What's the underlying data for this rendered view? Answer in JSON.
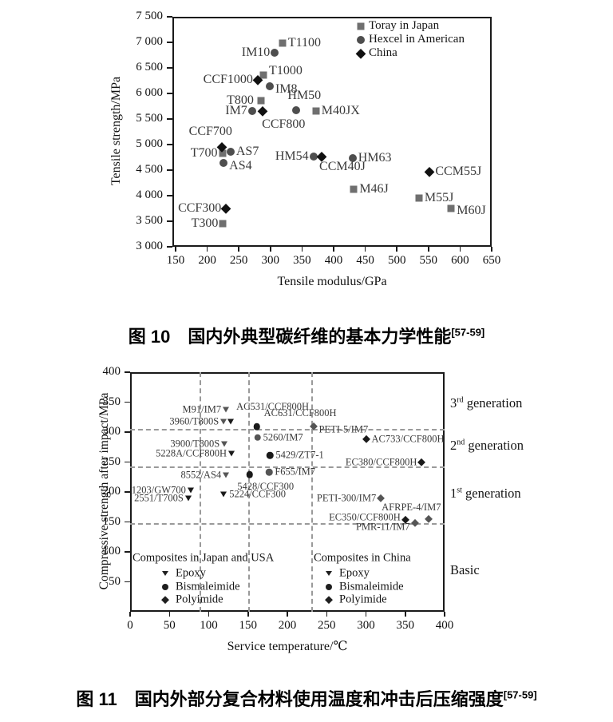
{
  "figure10": {
    "caption": {
      "label": "图 10",
      "text": "国内外典型碳纤维的基本力学性能",
      "ref": "[57-59]"
    }
  },
  "figure11": {
    "caption": {
      "label": "图 11",
      "text": "国内外部分复合材料使用温度和冲击后压缩强度",
      "ref": "[57-59]"
    }
  },
  "chart_data": [
    {
      "id": "fig10",
      "type": "scatter",
      "title": "",
      "xlabel": "Tensile modulus/GPa",
      "ylabel": "Tensile strength/MPa",
      "xlim": [
        145,
        650
      ],
      "ylim": [
        3000,
        7500
      ],
      "xticks": [
        150,
        200,
        250,
        300,
        350,
        400,
        450,
        500,
        550,
        600,
        650
      ],
      "yticks": [
        3000,
        3500,
        4000,
        4500,
        5000,
        5500,
        6000,
        6500,
        7000,
        7500
      ],
      "grid": false,
      "legend_position": "top-right-inside",
      "legend": [
        {
          "marker": "square",
          "label": "Toray in Japan"
        },
        {
          "marker": "circle",
          "label": "Hexcel in American"
        },
        {
          "marker": "diamond",
          "label": "China"
        }
      ],
      "series": [
        {
          "name": "Toray in Japan",
          "marker": "square",
          "color": "#6f6f6f",
          "points": [
            {
              "label": "T300",
              "x": 225,
              "y": 3450,
              "side": "l"
            },
            {
              "label": "T700",
              "x": 224,
              "y": 4830,
              "side": "l"
            },
            {
              "label": "T800",
              "x": 285,
              "y": 5860,
              "side": "l",
              "dx": -3
            },
            {
              "label": "T1000",
              "x": 289,
              "y": 6360,
              "side": "r",
              "dy": -5
            },
            {
              "label": "T1100",
              "x": 319,
              "y": 6980,
              "side": "r"
            },
            {
              "label": "M40JX",
              "x": 372,
              "y": 5660,
              "side": "r"
            },
            {
              "label": "M46J",
              "x": 432,
              "y": 4130,
              "side": "r"
            },
            {
              "label": "M55J",
              "x": 535,
              "y": 3950,
              "side": "r"
            },
            {
              "label": "M60J",
              "x": 586,
              "y": 3750,
              "side": "r",
              "dy": 3
            }
          ]
        },
        {
          "name": "Hexcel in American",
          "marker": "circle",
          "color": "#4e4e4e",
          "points": [
            {
              "label": "AS4",
              "x": 226,
              "y": 4640,
              "side": "r",
              "dy": 4
            },
            {
              "label": "AS7",
              "x": 237,
              "y": 4860,
              "side": "r"
            },
            {
              "label": "IM7",
              "x": 271,
              "y": 5660,
              "side": "l"
            },
            {
              "label": "IM8",
              "x": 299,
              "y": 6140,
              "side": "r",
              "dy": 4
            },
            {
              "label": "IM10",
              "x": 307,
              "y": 6800,
              "side": "l"
            },
            {
              "label": "HM50",
              "x": 341,
              "y": 5670,
              "side": "a",
              "dx": 10,
              "dy": -2
            },
            {
              "label": "HM54",
              "x": 368,
              "y": 4770,
              "side": "l"
            },
            {
              "label": "HM63",
              "x": 430,
              "y": 4740,
              "side": "r"
            }
          ]
        },
        {
          "name": "China",
          "marker": "diamond",
          "color": "#111111",
          "points": [
            {
              "label": "CCF300",
              "x": 230,
              "y": 3750,
              "side": "l"
            },
            {
              "label": "CCF700",
              "x": 223,
              "y": 4950,
              "side": "a",
              "dx": -14,
              "dy": -3
            },
            {
              "label": "CCF800",
              "x": 288,
              "y": 5660,
              "side": "b",
              "dx": 26,
              "dy": 1
            },
            {
              "label": "CCF1000",
              "x": 280,
              "y": 6270,
              "side": "l"
            },
            {
              "label": "CCM40J",
              "x": 381,
              "y": 4760,
              "side": "b",
              "dx": 26,
              "dy": -3
            },
            {
              "label": "CCM55J",
              "x": 552,
              "y": 4470,
              "side": "r"
            }
          ]
        }
      ]
    },
    {
      "id": "fig11",
      "type": "scatter",
      "title": "",
      "xlabel": "Service temperature/℃",
      "ylabel": "Compressive strength after impact/MPa",
      "xlim": [
        0,
        400
      ],
      "ylim": [
        0,
        400
      ],
      "xticks": [
        0,
        50,
        100,
        150,
        200,
        250,
        300,
        350,
        400
      ],
      "yticks": [
        50,
        100,
        150,
        200,
        250,
        300,
        350,
        400
      ],
      "grid": false,
      "dashed_vlines": [
        88,
        150,
        230
      ],
      "dashed_hlines": [
        305,
        243,
        148
      ],
      "right_labels": [
        {
          "pre": "3",
          "sup": "rd",
          "post": " generation",
          "y": 348
        },
        {
          "pre": "2",
          "sup": "nd",
          "post": " generation",
          "y": 277
        },
        {
          "pre": "1",
          "sup": "st",
          "post": " generation",
          "y": 197
        },
        {
          "pre": "Basic",
          "sup": "",
          "post": "",
          "y": 70
        }
      ],
      "inplot_legend": {
        "columns": [
          {
            "header": "Composites in Japan and USA"
          },
          {
            "header": "Composites in China"
          }
        ],
        "rows": [
          {
            "marker": "triangle",
            "label": "Epoxy"
          },
          {
            "marker": "circle",
            "label": "Bismaleimide"
          },
          {
            "marker": "diamond",
            "label": "Polyimide"
          }
        ]
      },
      "series": [
        {
          "name": "Epoxy - Composites in Japan and USA",
          "marker": "triangle",
          "color": "#555555",
          "points": [
            {
              "label": "M91/IM7",
              "x": 122,
              "y": 338,
              "side": "l"
            },
            {
              "label": "3960/T800S",
              "x": 119,
              "y": 318,
              "side": "l"
            },
            {
              "label": "3900/T800S",
              "x": 120,
              "y": 280,
              "side": "l"
            },
            {
              "label": "8552/AS4",
              "x": 122,
              "y": 228,
              "side": "l"
            }
          ]
        },
        {
          "name": "Bismaleimide - Composites in Japan and USA",
          "marker": "circle",
          "color": "#555555",
          "points": [
            {
              "label": "5260/IM7",
              "x": 162,
              "y": 291,
              "side": "r"
            },
            {
              "label": "F655/IM7",
              "x": 177,
              "y": 233,
              "side": "r"
            }
          ]
        },
        {
          "name": "Polyimide - Composites in Japan and USA",
          "marker": "diamond",
          "color": "#555555",
          "points": [
            {
              "label": "PETI-5/IM7",
              "x": 233,
              "y": 309,
              "side": "r",
              "dy": 4
            },
            {
              "label": "PETI-300/IM7",
              "x": 319,
              "y": 190,
              "side": "l"
            },
            {
              "label": "AFRPE-4/IM7",
              "x": 380,
              "y": 155,
              "side": "a",
              "dx": -22
            },
            {
              "label": "PMR-11/IM7",
              "x": 362,
              "y": 148,
              "side": "l",
              "dy": 5
            }
          ]
        },
        {
          "name": "Epoxy - Composites in China",
          "marker": "triangle",
          "color": "#1a1a1a",
          "points": [
            {
              "label": "AC531/CCF800H",
              "x": 128,
              "y": 318,
              "side": "ar",
              "dx": 2,
              "dy": -8
            },
            {
              "label": "5228A/CCF800H",
              "x": 129,
              "y": 264,
              "side": "l"
            },
            {
              "label": "5224/CCF300",
              "x": 119,
              "y": 196,
              "side": "r"
            },
            {
              "label": "2551/T700S",
              "x": 74,
              "y": 189,
              "side": "l"
            },
            {
              "label": "1203/GW700",
              "x": 77,
              "y": 203,
              "side": "l"
            }
          ]
        },
        {
          "name": "Bismaleimide - Composites in China",
          "marker": "circle",
          "color": "#1a1a1a",
          "points": [
            {
              "label": "AC631/CCF800H",
              "x": 161,
              "y": 309,
              "side": "ar",
              "dx": 4,
              "dy": -6
            },
            {
              "label": "5429/ZT7-1",
              "x": 178,
              "y": 261,
              "side": "r"
            },
            {
              "label": "5428/CCF300",
              "x": 152,
              "y": 229,
              "side": "b",
              "dx": 20,
              "dy": 1
            }
          ]
        },
        {
          "name": "Polyimide - Composites in China",
          "marker": "diamond",
          "color": "#1a1a1a",
          "points": [
            {
              "label": "AC733/CCF800H",
              "x": 300,
              "y": 288,
              "side": "r"
            },
            {
              "label": "EC380/CCF800H",
              "x": 371,
              "y": 249,
              "side": "l"
            },
            {
              "label": "EC350/CCF800H",
              "x": 350,
              "y": 153,
              "side": "l",
              "dy": -3
            }
          ]
        }
      ]
    }
  ]
}
